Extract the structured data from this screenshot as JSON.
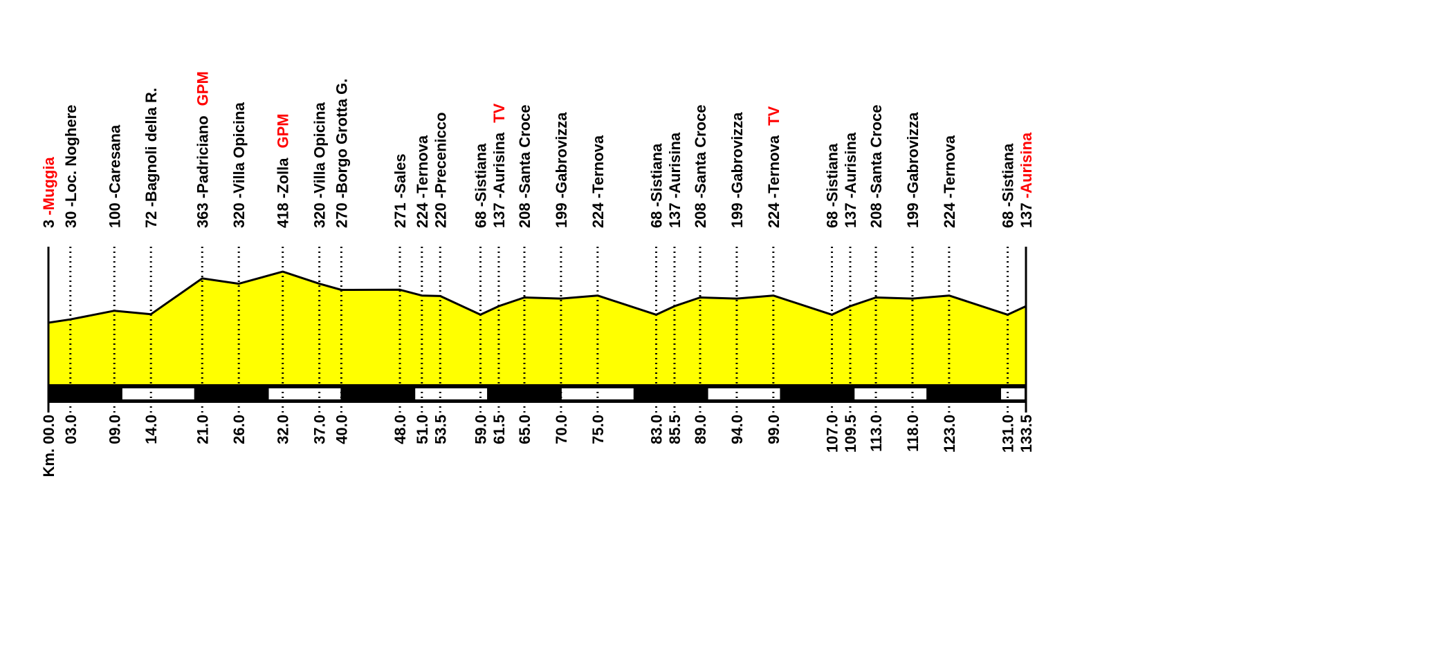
{
  "chart_data": {
    "type": "area",
    "title": "",
    "xlabel": "Km.",
    "ylabel": "",
    "xlim": [
      0,
      133.5
    ],
    "ylim": [
      0,
      418
    ],
    "fill_color": "#ffff00",
    "highlight_color": "#ff0000",
    "km_band_segment": 10,
    "points": [
      {
        "km": 0,
        "km_label": "00.0",
        "alt": 3,
        "name": "Muggia",
        "tag": "",
        "red_name": true
      },
      {
        "km": 3,
        "km_label": "03.0",
        "alt": 30,
        "name": "Loc. Noghere",
        "tag": ""
      },
      {
        "km": 9,
        "km_label": "09.0",
        "alt": 100,
        "name": "Caresana",
        "tag": ""
      },
      {
        "km": 14,
        "km_label": "14.0",
        "alt": 72,
        "name": "Bagnoli della R.",
        "tag": ""
      },
      {
        "km": 21,
        "km_label": "21.0",
        "alt": 363,
        "name": "Padriciano",
        "tag": "GPM"
      },
      {
        "km": 26,
        "km_label": "26.0",
        "alt": 320,
        "name": "Villa Opicina",
        "tag": ""
      },
      {
        "km": 32,
        "km_label": "32.0",
        "alt": 418,
        "name": "Zolla",
        "tag": "GPM"
      },
      {
        "km": 37,
        "km_label": "37.0",
        "alt": 320,
        "name": "Villa Opicina",
        "tag": ""
      },
      {
        "km": 40,
        "km_label": "40.0",
        "alt": 270,
        "name": "Borgo Grotta G.",
        "tag": ""
      },
      {
        "km": 48,
        "km_label": "48.0",
        "alt": 271,
        "name": "Sales",
        "tag": ""
      },
      {
        "km": 51,
        "km_label": "51.0",
        "alt": 224,
        "name": "Ternova",
        "tag": ""
      },
      {
        "km": 53.5,
        "km_label": "53.5",
        "alt": 220,
        "name": "Precenicco",
        "tag": ""
      },
      {
        "km": 59,
        "km_label": "59.0",
        "alt": 68,
        "name": "Sistiana",
        "tag": ""
      },
      {
        "km": 61.5,
        "km_label": "61.5",
        "alt": 137,
        "name": "Aurisina",
        "tag": "TV"
      },
      {
        "km": 65,
        "km_label": "65.0",
        "alt": 208,
        "name": "Santa Croce",
        "tag": ""
      },
      {
        "km": 70,
        "km_label": "70.0",
        "alt": 199,
        "name": "Gabrovizza",
        "tag": ""
      },
      {
        "km": 75,
        "km_label": "75.0",
        "alt": 224,
        "name": "Ternova",
        "tag": ""
      },
      {
        "km": 83,
        "km_label": "83.0",
        "alt": 68,
        "name": "Sistiana",
        "tag": ""
      },
      {
        "km": 85.5,
        "km_label": "85.5",
        "alt": 137,
        "name": "Aurisina",
        "tag": ""
      },
      {
        "km": 89,
        "km_label": "89.0",
        "alt": 208,
        "name": "Santa Croce",
        "tag": ""
      },
      {
        "km": 94,
        "km_label": "94.0",
        "alt": 199,
        "name": "Gabrovizza",
        "tag": ""
      },
      {
        "km": 99,
        "km_label": "99.0",
        "alt": 224,
        "name": "Ternova",
        "tag": "TV"
      },
      {
        "km": 107,
        "km_label": "107.0",
        "alt": 68,
        "name": "Sistiana",
        "tag": ""
      },
      {
        "km": 109.5,
        "km_label": "109.5",
        "alt": 137,
        "name": "Aurisina",
        "tag": ""
      },
      {
        "km": 113,
        "km_label": "113.0",
        "alt": 208,
        "name": "Santa Croce",
        "tag": ""
      },
      {
        "km": 118,
        "km_label": "118.0",
        "alt": 199,
        "name": "Gabrovizza",
        "tag": ""
      },
      {
        "km": 123,
        "km_label": "123.0",
        "alt": 224,
        "name": "Ternova",
        "tag": ""
      },
      {
        "km": 131,
        "km_label": "131.0",
        "alt": 68,
        "name": "Sistiana",
        "tag": ""
      },
      {
        "km": 133.5,
        "km_label": "133.5",
        "alt": 137,
        "name": "Aurisina",
        "tag": "",
        "red_name": true
      }
    ]
  }
}
